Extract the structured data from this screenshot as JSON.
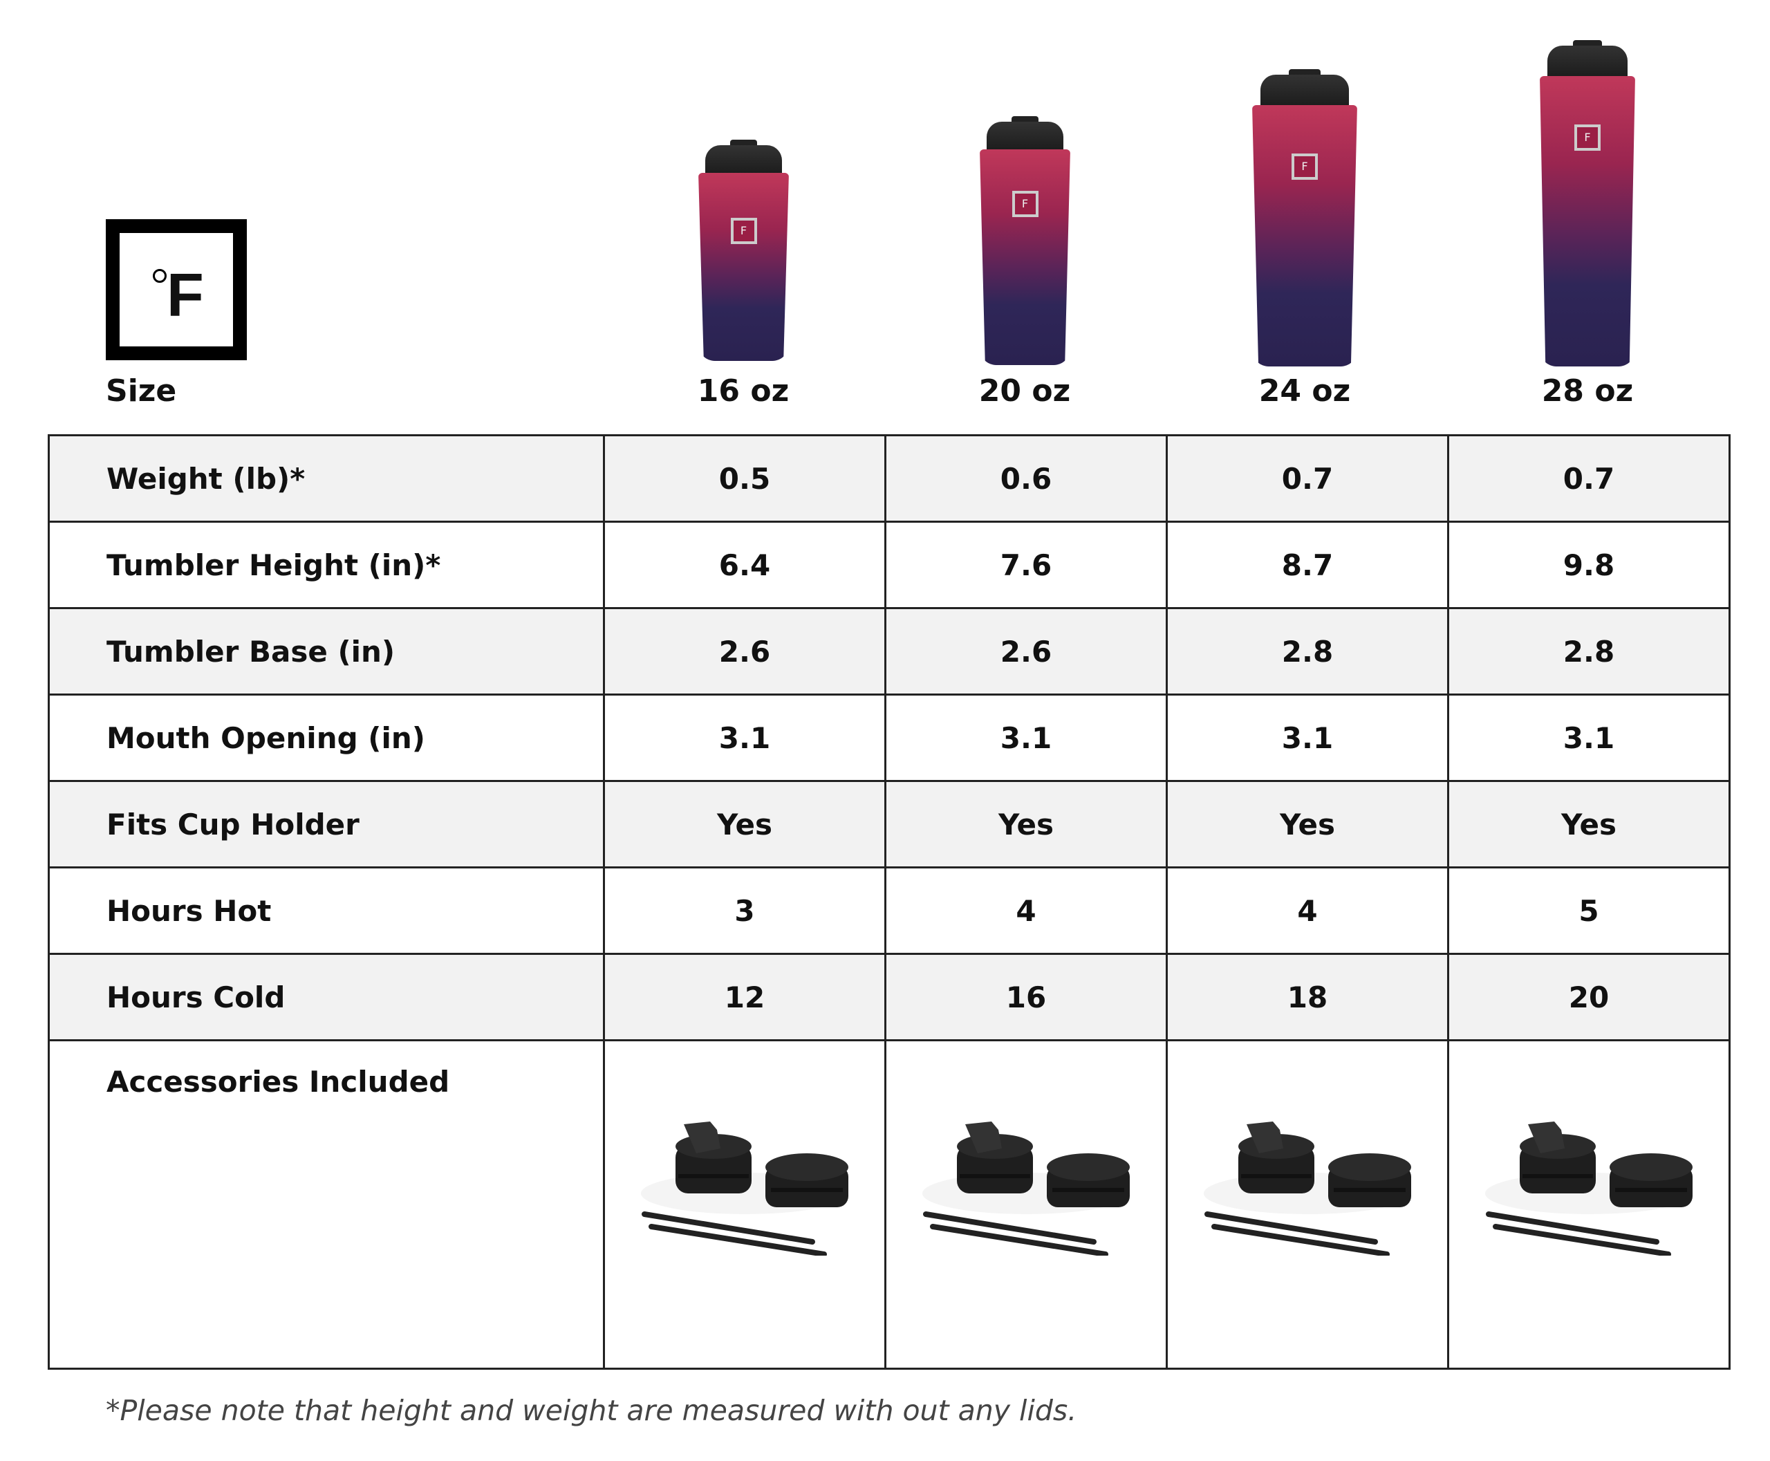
{
  "brand": {
    "logo_text": "°F"
  },
  "header": {
    "size_label": "Size",
    "sizes": [
      "16 oz",
      "20 oz",
      "24 oz",
      "28 oz"
    ]
  },
  "colors": {
    "tumbler_top": "#c0385a",
    "tumbler_bottom": "#2a2250",
    "lid": "#1b1b1b",
    "shaded_row": "#f2f2f2"
  },
  "rows": [
    {
      "label": "Weight (lb)*",
      "values": [
        "0.5",
        "0.6",
        "0.7",
        "0.7"
      ]
    },
    {
      "label": "Tumbler Height (in)*",
      "values": [
        "6.4",
        "7.6",
        "8.7",
        "9.8"
      ]
    },
    {
      "label": "Tumbler Base (in)",
      "values": [
        "2.6",
        "2.6",
        "2.8",
        "2.8"
      ]
    },
    {
      "label": "Mouth Opening (in)",
      "values": [
        "3.1",
        "3.1",
        "3.1",
        "3.1"
      ]
    },
    {
      "label": "Fits Cup Holder",
      "values": [
        "Yes",
        "Yes",
        "Yes",
        "Yes"
      ]
    },
    {
      "label": "Hours Hot",
      "values": [
        "3",
        "4",
        "4",
        "5"
      ]
    },
    {
      "label": "Hours Cold",
      "values": [
        "12",
        "16",
        "18",
        "20"
      ]
    }
  ],
  "accessories": {
    "label": "Accessories Included",
    "items": [
      "flip-lid",
      "flat-lid",
      "straw",
      "straw"
    ]
  },
  "footnote": "*Please note that height and weight are measured with out any lids."
}
